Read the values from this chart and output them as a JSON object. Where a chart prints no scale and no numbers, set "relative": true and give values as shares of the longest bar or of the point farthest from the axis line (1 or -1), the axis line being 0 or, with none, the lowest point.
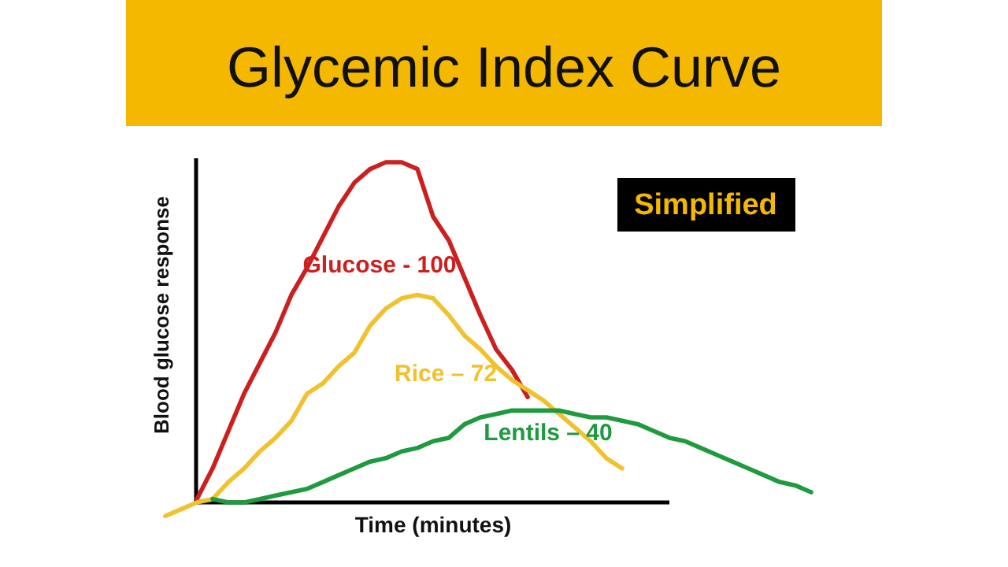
{
  "chart_data": {
    "type": "line",
    "title": "Glycemic Index Curve",
    "xlabel": "Time (minutes)",
    "ylabel": "Blood glucose response",
    "annotations": [
      "Simplified"
    ],
    "relative": true,
    "marker": "none",
    "line_style": "solid",
    "ref_lines": [
      {
        "axis": "y",
        "value": 0,
        "color": "#000000"
      }
    ],
    "categories": [
      null,
      null,
      null,
      null,
      null,
      null,
      null,
      null,
      null,
      null,
      null,
      null,
      null,
      null,
      null,
      null,
      null,
      null,
      null,
      null,
      null,
      null,
      null,
      null,
      null,
      null,
      null,
      null,
      null,
      null,
      null,
      null,
      null,
      null,
      null,
      null,
      null,
      null,
      null,
      null,
      null,
      null
    ],
    "series": [
      {
        "name": "Glucose - 100",
        "color": "#cc1f1f",
        "values": [
          null,
          null,
          0.01,
          0.1,
          0.21,
          0.32,
          0.41,
          0.5,
          0.61,
          0.69,
          0.78,
          0.87,
          0.94,
          0.98,
          1.0,
          1.0,
          0.98,
          0.84,
          0.77,
          0.66,
          0.55,
          0.45,
          0.39,
          0.31,
          null,
          null,
          null,
          null,
          null,
          null,
          null,
          null,
          null,
          null,
          null,
          null,
          null,
          null,
          null,
          null,
          null,
          null
        ]
      },
      {
        "name": "Rice – 72",
        "color": "#f2c12e",
        "values": [
          -0.04,
          -0.02,
          0.0,
          0.01,
          0.06,
          0.1,
          0.15,
          0.19,
          0.24,
          0.32,
          0.35,
          0.4,
          0.44,
          0.52,
          0.57,
          0.6,
          0.61,
          0.6,
          0.55,
          0.49,
          0.45,
          0.4,
          0.36,
          0.33,
          0.3,
          0.26,
          0.22,
          0.18,
          0.13,
          0.1,
          null,
          null,
          null,
          null,
          null,
          null,
          null,
          null,
          null,
          null,
          null,
          null
        ]
      },
      {
        "name": "Lentils – 40",
        "color": "#1f9a3f",
        "values": [
          null,
          null,
          null,
          0.01,
          0.0,
          0.0,
          0.01,
          0.02,
          0.03,
          0.04,
          0.06,
          0.08,
          0.1,
          0.12,
          0.13,
          0.15,
          0.16,
          0.18,
          0.19,
          0.23,
          0.25,
          0.26,
          0.27,
          0.27,
          0.27,
          0.27,
          0.26,
          0.25,
          0.25,
          0.24,
          0.23,
          0.21,
          0.19,
          0.18,
          0.16,
          0.14,
          0.12,
          0.1,
          0.08,
          0.06,
          0.05,
          0.03
        ]
      }
    ]
  }
}
